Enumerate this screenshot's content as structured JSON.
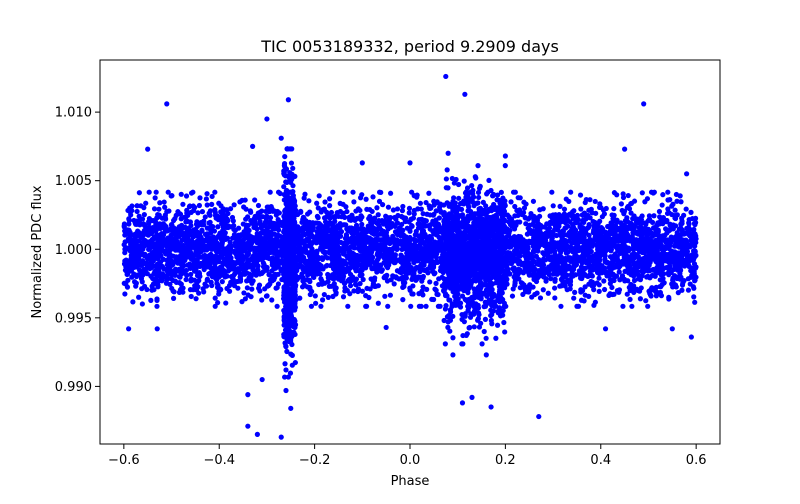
{
  "chart_data": {
    "type": "scatter",
    "title": "TIC 0053189332, period 9.2909 days",
    "xlabel": "Phase",
    "ylabel": "Normalized PDC flux",
    "xlim": [
      -0.65,
      0.65
    ],
    "ylim": [
      0.9858,
      1.0138
    ],
    "xticks": [
      -0.6,
      -0.4,
      -0.2,
      0.0,
      0.2,
      0.4,
      0.6
    ],
    "xtick_labels": [
      "−0.6",
      "−0.4",
      "−0.2",
      "0.0",
      "0.2",
      "0.4",
      "0.6"
    ],
    "yticks": [
      0.99,
      0.995,
      1.0,
      1.005,
      1.01
    ],
    "ytick_labels": [
      "0.990",
      "0.995",
      "1.000",
      "1.005",
      "1.010"
    ],
    "grid": false,
    "marker_color": "#0000ff",
    "series": [
      {
        "values": {
          "x": [
            -0.51,
            0.49,
            0.075,
            0.115,
            -0.255,
            -0.3,
            -0.27,
            -0.33,
            -0.34,
            -0.25,
            -0.34,
            -0.32,
            -0.27,
            -0.26,
            0.17,
            0.11,
            0.13,
            0.27,
            -0.1,
            0.0,
            0.58,
            0.45,
            -0.55,
            0.08,
            0.2,
            -0.05,
            -0.59,
            0.59,
            0.41,
            0.55,
            -0.53,
            -0.26,
            -0.31,
            -0.24,
            0.09,
            0.16
          ],
          "y": [
            1.0106,
            1.0106,
            1.0126,
            1.0113,
            1.0109,
            1.0095,
            1.0081,
            1.0075,
            0.9894,
            0.9884,
            0.9871,
            0.9865,
            0.9863,
            0.9897,
            0.9885,
            0.9888,
            0.9892,
            0.9878,
            1.0063,
            1.0063,
            1.0055,
            1.0073,
            1.0073,
            1.007,
            1.0068,
            0.9943,
            0.9942,
            0.9936,
            0.9942,
            0.9942,
            0.9942,
            0.9912,
            0.9905,
            0.9945,
            0.9923,
            0.9923
          ]
        }
      }
    ],
    "dense_bands": [
      {
        "x_range": [
          -0.6,
          0.6
        ],
        "center": 1.0,
        "spread": 0.0016
      },
      {
        "x_range": [
          -0.265,
          -0.24
        ],
        "center": 0.999,
        "spread": 0.0032
      },
      {
        "x_range": [
          0.07,
          0.2
        ],
        "center": 0.9996,
        "spread": 0.0025
      }
    ]
  }
}
